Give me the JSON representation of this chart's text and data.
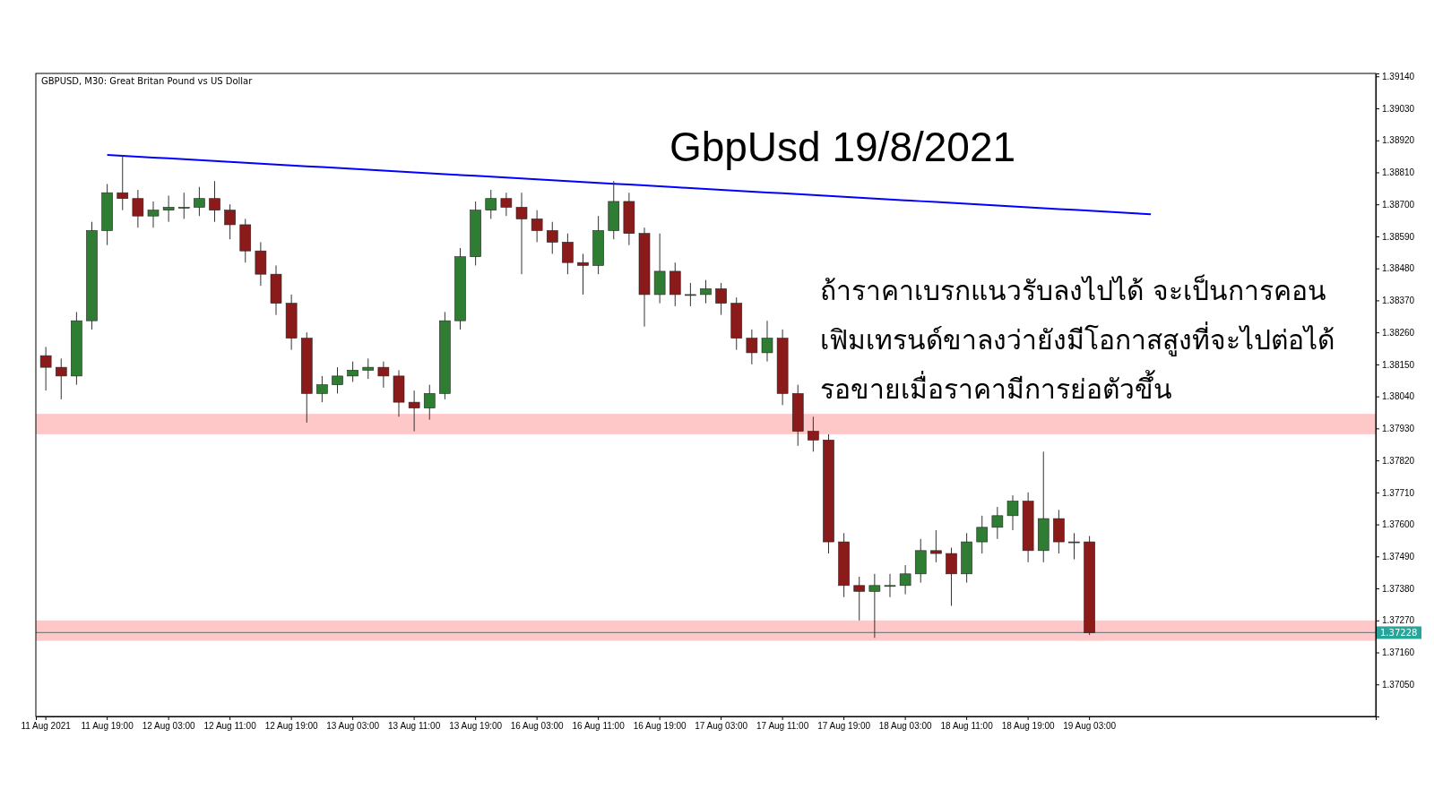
{
  "chart_data": {
    "type": "candlestick",
    "title": "GbpUsd 19/8/2021",
    "subtitle": "GBPUSD, M30:  Great Britan Pound vs US Dollar",
    "annotations": [
      "ถ้าราคาเบรกแนวรับลงไปได้ จะเป็นการคอน",
      "เฟิมเทรนด์ขาลงว่ายังมีโอกาสสูงที่จะไปต่อได้",
      "รอขายเมื่อราคามีการย่อตัวขึ้น"
    ],
    "categories": [
      "11 Aug 2021",
      null,
      null,
      null,
      "11 Aug 19:00",
      null,
      null,
      null,
      "12 Aug 03:00",
      null,
      null,
      null,
      "12 Aug 11:00",
      null,
      null,
      null,
      "12 Aug 19:00",
      null,
      null,
      null,
      "13 Aug 03:00",
      null,
      null,
      null,
      "13 Aug 11:00",
      null,
      null,
      null,
      "13 Aug 19:00",
      null,
      null,
      null,
      "16 Aug 03:00",
      null,
      null,
      null,
      "16 Aug 11:00",
      null,
      null,
      null,
      "16 Aug 19:00",
      null,
      null,
      null,
      "17 Aug 03:00",
      null,
      null,
      null,
      "17 Aug 11:00",
      null,
      null,
      null,
      "17 Aug 19:00",
      null,
      null,
      null,
      "18 Aug 03:00",
      null,
      null,
      null,
      "18 Aug 11:00",
      null,
      null,
      null,
      "18 Aug 19:00",
      null,
      null,
      null,
      "19 Aug 03:00",
      null,
      null,
      null,
      null,
      null,
      null,
      null,
      null,
      null,
      null,
      null,
      null,
      null,
      null,
      null,
      null,
      null,
      null
    ],
    "ohlc": [
      [
        1.3818,
        1.3821,
        1.3806,
        1.3814
      ],
      [
        1.3814,
        1.3817,
        1.3803,
        1.3811
      ],
      [
        1.3811,
        1.3833,
        1.3808,
        1.383
      ],
      [
        1.383,
        1.3864,
        1.3827,
        1.3861
      ],
      [
        1.3861,
        1.3877,
        1.3856,
        1.3874
      ],
      [
        1.3874,
        1.3887,
        1.3868,
        1.3872
      ],
      [
        1.3872,
        1.3875,
        1.3862,
        1.3866
      ],
      [
        1.3866,
        1.3871,
        1.3862,
        1.3868
      ],
      [
        1.3868,
        1.3873,
        1.3864,
        1.3869
      ],
      [
        1.3869,
        1.3874,
        1.3865,
        1.3869
      ],
      [
        1.3869,
        1.3876,
        1.3866,
        1.3872
      ],
      [
        1.3872,
        1.3878,
        1.3864,
        1.3868
      ],
      [
        1.3868,
        1.387,
        1.3858,
        1.3863
      ],
      [
        1.3863,
        1.3865,
        1.385,
        1.3854
      ],
      [
        1.3854,
        1.3857,
        1.3842,
        1.3846
      ],
      [
        1.3846,
        1.3849,
        1.3832,
        1.3836
      ],
      [
        1.3836,
        1.3839,
        1.382,
        1.3824
      ],
      [
        1.3824,
        1.3826,
        1.3795,
        1.3805
      ],
      [
        1.3805,
        1.3811,
        1.3802,
        1.3808
      ],
      [
        1.3808,
        1.3814,
        1.3805,
        1.3811
      ],
      [
        1.3811,
        1.3816,
        1.3809,
        1.3813
      ],
      [
        1.3813,
        1.3817,
        1.381,
        1.3814
      ],
      [
        1.3814,
        1.3816,
        1.3807,
        1.3811
      ],
      [
        1.3811,
        1.3813,
        1.3797,
        1.3802
      ],
      [
        1.3802,
        1.3806,
        1.3792,
        1.38
      ],
      [
        1.38,
        1.3808,
        1.3796,
        1.3805
      ],
      [
        1.3805,
        1.3833,
        1.3803,
        1.383
      ],
      [
        1.383,
        1.3855,
        1.3827,
        1.3852
      ],
      [
        1.3852,
        1.3871,
        1.3849,
        1.3868
      ],
      [
        1.3868,
        1.3875,
        1.3865,
        1.3872
      ],
      [
        1.3872,
        1.3874,
        1.3866,
        1.3869
      ],
      [
        1.3869,
        1.3874,
        1.3846,
        1.3865
      ],
      [
        1.3865,
        1.3868,
        1.3857,
        1.3861
      ],
      [
        1.3861,
        1.3864,
        1.3853,
        1.3857
      ],
      [
        1.3857,
        1.386,
        1.3846,
        1.385
      ],
      [
        1.385,
        1.3853,
        1.3839,
        1.3849
      ],
      [
        1.3849,
        1.3866,
        1.3846,
        1.3861
      ],
      [
        1.3861,
        1.3878,
        1.3858,
        1.3871
      ],
      [
        1.3871,
        1.3874,
        1.3856,
        1.386
      ],
      [
        1.386,
        1.3862,
        1.3828,
        1.3839
      ],
      [
        1.3839,
        1.386,
        1.3836,
        1.3847
      ],
      [
        1.3847,
        1.385,
        1.3835,
        1.3839
      ],
      [
        1.3839,
        1.3843,
        1.3835,
        1.3839
      ],
      [
        1.3839,
        1.3844,
        1.3836,
        1.3841
      ],
      [
        1.3841,
        1.3843,
        1.3832,
        1.3836
      ],
      [
        1.3836,
        1.3838,
        1.382,
        1.3824
      ],
      [
        1.3824,
        1.3827,
        1.3815,
        1.3819
      ],
      [
        1.3819,
        1.383,
        1.3816,
        1.3824
      ],
      [
        1.3824,
        1.3827,
        1.3801,
        1.3805
      ],
      [
        1.3805,
        1.3808,
        1.3787,
        1.3792
      ],
      [
        1.3792,
        1.3797,
        1.3785,
        1.3789
      ],
      [
        1.3789,
        1.3791,
        1.375,
        1.3754
      ],
      [
        1.3754,
        1.3757,
        1.3735,
        1.3739
      ],
      [
        1.3739,
        1.3742,
        1.3727,
        1.3737
      ],
      [
        1.3737,
        1.3743,
        1.3721,
        1.3739
      ],
      [
        1.3739,
        1.3743,
        1.3735,
        1.3739
      ],
      [
        1.3739,
        1.3746,
        1.3736,
        1.3743
      ],
      [
        1.3743,
        1.3755,
        1.374,
        1.3751
      ],
      [
        1.3751,
        1.3758,
        1.3747,
        1.375
      ],
      [
        1.375,
        1.3752,
        1.3732,
        1.3743
      ],
      [
        1.3743,
        1.3757,
        1.374,
        1.3754
      ],
      [
        1.3754,
        1.3763,
        1.375,
        1.3759
      ],
      [
        1.3759,
        1.3766,
        1.3755,
        1.3763
      ],
      [
        1.3763,
        1.377,
        1.3758,
        1.3768
      ],
      [
        1.3768,
        1.3771,
        1.3747,
        1.3751
      ],
      [
        1.3751,
        1.3785,
        1.3747,
        1.3762
      ],
      [
        1.3762,
        1.3765,
        1.375,
        1.3754
      ],
      [
        1.3754,
        1.3757,
        1.3748,
        1.3754
      ],
      [
        1.3754,
        1.3756,
        1.3722,
        1.37228
      ],
      null,
      null,
      null,
      null,
      null,
      null,
      null,
      null,
      null,
      null,
      null,
      null,
      null,
      null,
      null,
      null,
      null,
      null
    ],
    "series": [
      {
        "type": "line",
        "color": "#0000ff",
        "values": [
          null,
          null,
          null,
          null,
          1.3887,
          1.38867,
          1.38864,
          1.38861,
          1.38858,
          1.38855,
          1.38852,
          1.38849,
          1.38846,
          1.38843,
          1.3884,
          1.38837,
          1.38834,
          1.38831,
          1.38828,
          1.38825,
          1.38822,
          1.38819,
          1.38816,
          1.38813,
          1.3881,
          1.38807,
          1.38804,
          1.38801,
          1.38798,
          1.38795,
          1.38792,
          1.38789,
          1.38786,
          1.38783,
          1.3878,
          1.38777,
          1.38774,
          1.38771,
          1.38768,
          1.38765,
          1.38762,
          1.38759,
          1.38756,
          1.38753,
          1.3875,
          1.38747,
          1.38744,
          1.38741,
          1.38738,
          1.38735,
          1.38732,
          1.38729,
          1.38726,
          1.38723,
          1.3872,
          1.38717,
          1.38714,
          1.38711,
          1.38708,
          1.38705,
          1.38702,
          1.38699,
          1.38696,
          1.38693,
          1.3869,
          1.38687,
          1.38684,
          1.38681,
          1.38678,
          1.38675,
          1.38672,
          1.38669,
          1.38666,
          null,
          null,
          null,
          null,
          null,
          null,
          null,
          null,
          null,
          null,
          null,
          null,
          null,
          null
        ]
      }
    ],
    "ylim": [
      1.3694,
      1.3915
    ],
    "yticks": [
      {
        "value": 1.3914,
        "label": "1.39140"
      },
      {
        "value": 1.3903,
        "label": "1.39030"
      },
      {
        "value": 1.3892,
        "label": "1.38920"
      },
      {
        "value": 1.3881,
        "label": "1.38810"
      },
      {
        "value": 1.387,
        "label": "1.38700"
      },
      {
        "value": 1.3859,
        "label": "1.38590"
      },
      {
        "value": 1.3848,
        "label": "1.38480"
      },
      {
        "value": 1.3837,
        "label": "1.38370"
      },
      {
        "value": 1.3826,
        "label": "1.38260"
      },
      {
        "value": 1.3815,
        "label": "1.38150"
      },
      {
        "value": 1.3804,
        "label": "1.38040"
      },
      {
        "value": 1.3793,
        "label": "1.37930"
      },
      {
        "value": 1.3782,
        "label": "1.37820"
      },
      {
        "value": 1.3771,
        "label": "1.37710"
      },
      {
        "value": 1.376,
        "label": "1.37600"
      },
      {
        "value": 1.3749,
        "label": "1.37490"
      },
      {
        "value": 1.3738,
        "label": "1.37380"
      },
      {
        "value": 1.3727,
        "label": "1.37270"
      },
      {
        "value": 1.3716,
        "label": "1.37160"
      },
      {
        "value": 1.3705,
        "label": "1.37050"
      }
    ],
    "bands": [
      {
        "axis": "y",
        "from": 1.3791,
        "to": 1.3798,
        "color": "#ffc8c8"
      },
      {
        "axis": "y",
        "from": 1.372,
        "to": 1.3727,
        "color": "#ffc8c8"
      }
    ],
    "ref_lines": [
      {
        "axis": "y",
        "value": 1.37228,
        "label": "1.37228",
        "color": "#808080"
      }
    ]
  }
}
